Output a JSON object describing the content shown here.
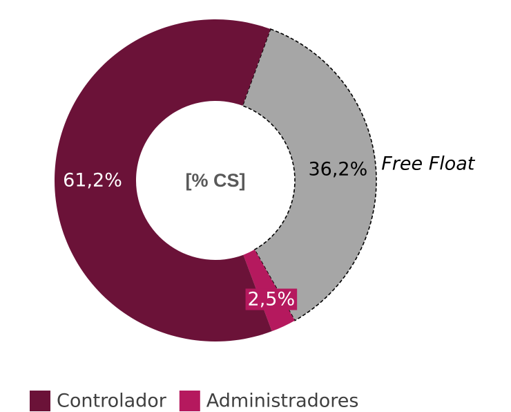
{
  "chart_data": {
    "type": "donut",
    "center_label": "[% CS]",
    "slices": [
      {
        "name": "Free Float",
        "value": 36.2,
        "value_label": "36,2%",
        "color": "#a6a6a6",
        "outline": "dashed",
        "in_legend": false
      },
      {
        "name": "Administradores",
        "value": 2.5,
        "value_label": "2,5%",
        "color": "#b5195e",
        "in_legend": true
      },
      {
        "name": "Controlador",
        "value": 61.2,
        "value_label": "61,2%",
        "color": "#6b1238",
        "in_legend": true
      }
    ]
  }
}
